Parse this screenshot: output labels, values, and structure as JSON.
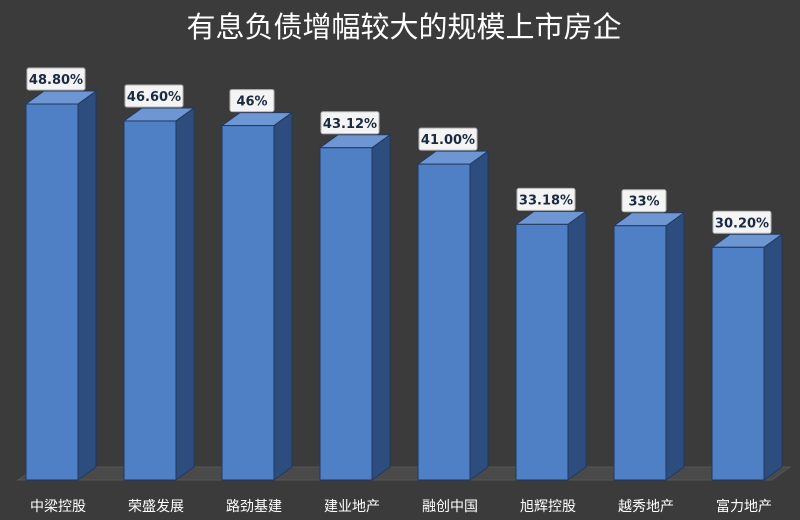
{
  "chart_data": {
    "type": "bar",
    "title": "有息负债增幅较大的规模上市房企",
    "xlabel": "",
    "ylabel": "",
    "ylim": [
      0,
      55
    ],
    "grid": false,
    "legend": "none",
    "bar_style": "3d-column",
    "categories": [
      "中梁控股",
      "荣盛发展",
      "路劲基建",
      "建业地产",
      "融创中国",
      "旭辉控股",
      "越秀地产",
      "富力地产"
    ],
    "values": [
      48.8,
      46.6,
      46,
      43.12,
      41.0,
      33.18,
      33,
      30.2
    ],
    "data_labels": [
      "48.80%",
      "46.60%",
      "46%",
      "43.12%",
      "41.00%",
      "33.18%",
      "33%",
      "30.20%"
    ],
    "colors": {
      "background": "#3b3b3b",
      "bar_front": "#4f7fc4",
      "bar_side": "#2d4d7e",
      "bar_top": "#6d96d2",
      "bar_edge": "#22395e",
      "floor": "#4a4a4a",
      "label_box": "#f4f4f4",
      "label_text": "#1a2a40"
    }
  }
}
